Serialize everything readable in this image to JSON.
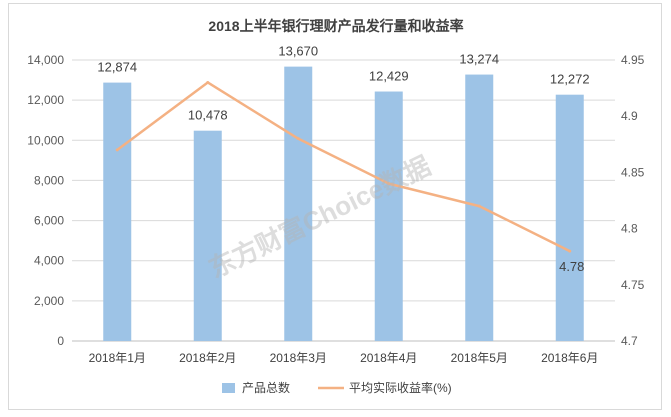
{
  "chart_data": {
    "type": "bar",
    "title": "2018上半年银行理财产品发行量和收益率",
    "categories": [
      "2018年1月",
      "2018年2月",
      "2018年3月",
      "2018年4月",
      "2018年5月",
      "2018年6月"
    ],
    "series": [
      {
        "name": "产品总数",
        "type": "bar",
        "axis": "left",
        "color": "#9DC3E6",
        "values": [
          12874,
          10478,
          13670,
          12429,
          13274,
          12272
        ],
        "data_labels": [
          "12,874",
          "10,478",
          "13,670",
          "12,429",
          "13,274",
          "12,272"
        ]
      },
      {
        "name": "平均实际收益率(%)",
        "type": "line",
        "axis": "right",
        "color": "#F4B183",
        "values": [
          4.87,
          4.93,
          4.88,
          4.84,
          4.82,
          4.78
        ],
        "data_labels": [
          null,
          null,
          null,
          null,
          null,
          "4.78"
        ]
      }
    ],
    "y_left": {
      "min": 0,
      "max": 14000,
      "ticks": [
        {
          "value": 0,
          "label": "0"
        },
        {
          "value": 2000,
          "label": "2,000"
        },
        {
          "value": 4000,
          "label": "4,000"
        },
        {
          "value": 6000,
          "label": "6,000"
        },
        {
          "value": 8000,
          "label": "8,000"
        },
        {
          "value": 10000,
          "label": "10,000"
        },
        {
          "value": 12000,
          "label": "12,000"
        },
        {
          "value": 14000,
          "label": "14,000"
        }
      ]
    },
    "y_right": {
      "min": 4.7,
      "max": 4.95,
      "ticks": [
        {
          "value": 4.7,
          "label": "4.7"
        },
        {
          "value": 4.75,
          "label": "4.75"
        },
        {
          "value": 4.8,
          "label": "4.8"
        },
        {
          "value": 4.85,
          "label": "4.85"
        },
        {
          "value": 4.9,
          "label": "4.9"
        },
        {
          "value": 4.95,
          "label": "4.95"
        }
      ]
    },
    "grid": true,
    "legend": "bottom"
  },
  "watermark": "东方财富Choice数据"
}
